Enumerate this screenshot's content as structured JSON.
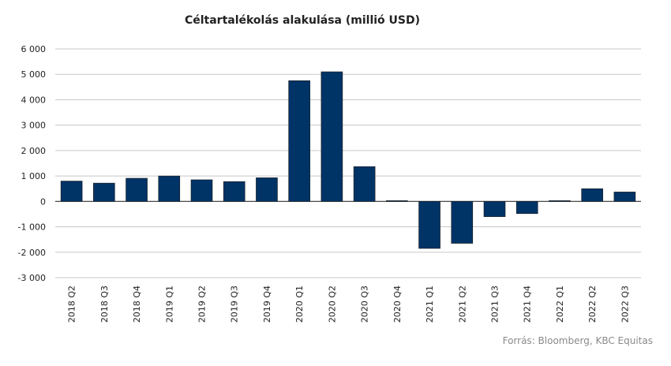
{
  "chart_data": {
    "type": "bar",
    "title": "Céltartalékolás alakulása (millió USD)",
    "categories": [
      "2018 Q2",
      "2018 Q3",
      "2018 Q4",
      "2019 Q1",
      "2019 Q2",
      "2019 Q3",
      "2019 Q4",
      "2020 Q1",
      "2020 Q2",
      "2020 Q3",
      "2020 Q4",
      "2021 Q1",
      "2021 Q2",
      "2021 Q3",
      "2021 Q4",
      "2022 Q1",
      "2022 Q2",
      "2022 Q3"
    ],
    "values": [
      800,
      720,
      910,
      1000,
      850,
      780,
      930,
      4750,
      5100,
      1370,
      30,
      -1850,
      -1650,
      -600,
      -480,
      30,
      500,
      370
    ],
    "yticks": [
      6000,
      5000,
      4000,
      3000,
      2000,
      1000,
      0,
      -1000,
      -2000,
      -3000
    ],
    "ytick_labels": [
      "6 000",
      "5 000",
      "4 000",
      "3 000",
      "2 000",
      "1 000",
      "0",
      "-1 000",
      "-2 000",
      "-3 000"
    ],
    "ylim": [
      -3000,
      6000
    ],
    "xlabel": "",
    "ylabel": "",
    "grid": true,
    "bar_color": "#003366",
    "source": "Forrás: Bloomberg, KBC Equitas"
  }
}
